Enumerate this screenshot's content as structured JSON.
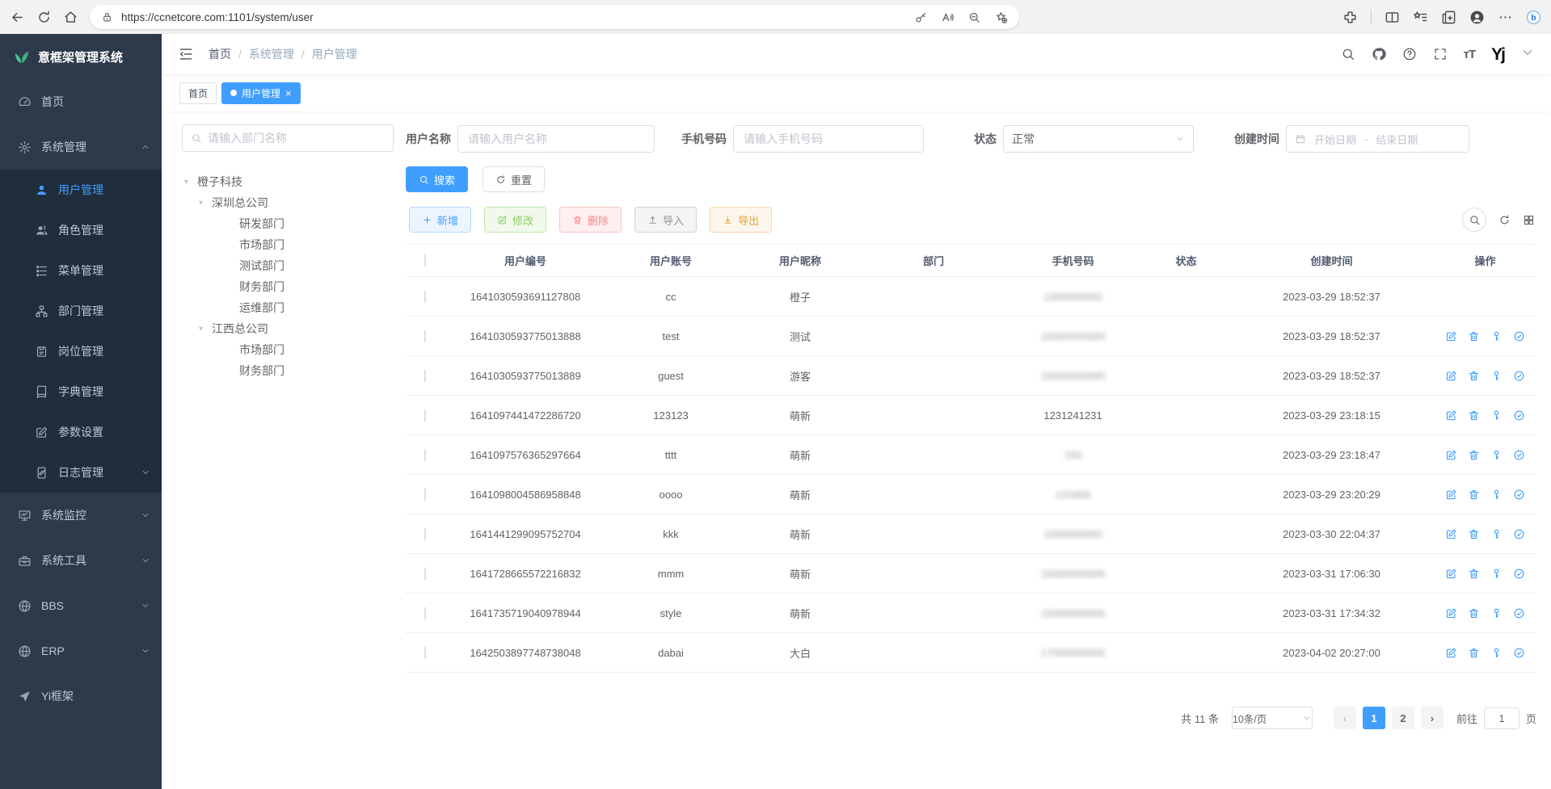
{
  "browser": {
    "url": "https://ccnetcore.com:1101/system/user"
  },
  "sidebar": {
    "title": "意框架管理系统",
    "menu": {
      "home": "首页",
      "system": "系统管理",
      "monitor": "系统监控",
      "tools": "系统工具",
      "bbs": "BBS",
      "erp": "ERP",
      "yi": "Yi框架"
    },
    "system_children": [
      "用户管理",
      "角色管理",
      "菜单管理",
      "部门管理",
      "岗位管理",
      "字典管理",
      "参数设置",
      "日志管理"
    ]
  },
  "topnav": {
    "breadcrumb": [
      "首页",
      "系统管理",
      "用户管理"
    ],
    "avatar_text": "Yj"
  },
  "tabs": {
    "home": "首页",
    "active": "用户管理"
  },
  "dept_panel": {
    "placeholder": "请输入部门名称",
    "tree": [
      {
        "label": "橙子科技",
        "cls": "lvl0",
        "caret": true
      },
      {
        "label": "深圳总公司",
        "cls": "lvl1",
        "caret": true
      },
      {
        "label": "研发部门",
        "cls": "lvl2",
        "caret": false
      },
      {
        "label": "市场部门",
        "cls": "lvl2",
        "caret": false
      },
      {
        "label": "测试部门",
        "cls": "lvl2",
        "caret": false
      },
      {
        "label": "财务部门",
        "cls": "lvl2",
        "caret": false
      },
      {
        "label": "运维部门",
        "cls": "lvl2",
        "caret": false
      },
      {
        "label": "江西总公司",
        "cls": "lvl1",
        "caret": true
      },
      {
        "label": "市场部门",
        "cls": "lvl2",
        "caret": false
      },
      {
        "label": "财务部门",
        "cls": "lvl2",
        "caret": false
      }
    ]
  },
  "filters": {
    "username_label": "用户名称",
    "username_placeholder": "请输入用户名称",
    "phone_label": "手机号码",
    "phone_placeholder": "请输入手机号码",
    "status_label": "状态",
    "status_value": "正常",
    "created_label": "创建时间",
    "date_start": "开始日期",
    "date_sep": "-",
    "date_end": "结束日期"
  },
  "actions": {
    "search": "搜索",
    "reset": "重置",
    "add": "新增",
    "modify": "修改",
    "remove": "删除",
    "import": "导入",
    "export": "导出"
  },
  "table": {
    "headers": [
      "用户编号",
      "用户账号",
      "用户昵称",
      "部门",
      "手机号码",
      "状态",
      "创建时间",
      "操作"
    ],
    "rows": [
      {
        "id": "1641030593691127808",
        "account": "cc",
        "nickname": "橙子",
        "dept": "",
        "phone": "1300000000",
        "blur": true,
        "status_on": true,
        "created": "2023-03-29 18:52:37",
        "ops": false
      },
      {
        "id": "1641030593775013888",
        "account": "test",
        "nickname": "测试",
        "dept": "",
        "phone": "15000000000",
        "blur": true,
        "status_on": true,
        "created": "2023-03-29 18:52:37",
        "ops": true
      },
      {
        "id": "1641030593775013889",
        "account": "guest",
        "nickname": "游客",
        "dept": "",
        "phone": "15000000000",
        "blur": true,
        "status_on": true,
        "created": "2023-03-29 18:52:37",
        "ops": true
      },
      {
        "id": "1641097441472286720",
        "account": "123123",
        "nickname": "萌新",
        "dept": "",
        "phone": "1231241231",
        "blur": false,
        "status_on": true,
        "created": "2023-03-29 23:18:15",
        "ops": true
      },
      {
        "id": "1641097576365297664",
        "account": "tttt",
        "nickname": "萌新",
        "dept": "",
        "phone": "150",
        "blur": true,
        "status_on": true,
        "created": "2023-03-29 23:18:47",
        "ops": true
      },
      {
        "id": "1641098004586958848",
        "account": "oooo",
        "nickname": "萌新",
        "dept": "",
        "phone": "123456",
        "blur": true,
        "status_on": true,
        "created": "2023-03-29 23:20:29",
        "ops": true
      },
      {
        "id": "1641441299095752704",
        "account": "kkk",
        "nickname": "萌新",
        "dept": "",
        "phone": "1500000000",
        "blur": true,
        "status_on": true,
        "created": "2023-03-30 22:04:37",
        "ops": true
      },
      {
        "id": "1641728665572216832",
        "account": "mmm",
        "nickname": "萌新",
        "dept": "",
        "phone": "15000000000",
        "blur": true,
        "status_on": true,
        "created": "2023-03-31 17:06:30",
        "ops": true
      },
      {
        "id": "1641735719040978944",
        "account": "style",
        "nickname": "萌新",
        "dept": "",
        "phone": "15000000000",
        "blur": true,
        "status_on": true,
        "created": "2023-03-31 17:34:32",
        "ops": true
      },
      {
        "id": "1642503897748738048",
        "account": "dabai",
        "nickname": "大白",
        "dept": "",
        "phone": "17000000000",
        "blur": true,
        "status_on": true,
        "created": "2023-04-02 20:27:00",
        "ops": true
      }
    ]
  },
  "pagination": {
    "total": "共 11 条",
    "size": "10条/页",
    "page1": "1",
    "page2": "2",
    "goto": "前往",
    "goto_value": "1",
    "unit": "页"
  },
  "colors": {
    "accent": "#409eff",
    "sidebar_bg": "#2d3a4b",
    "submenu_bg": "#1f2d3d",
    "success": "#67c23a",
    "danger": "#f56c6c",
    "warning": "#e6a23c",
    "info": "#909399"
  }
}
